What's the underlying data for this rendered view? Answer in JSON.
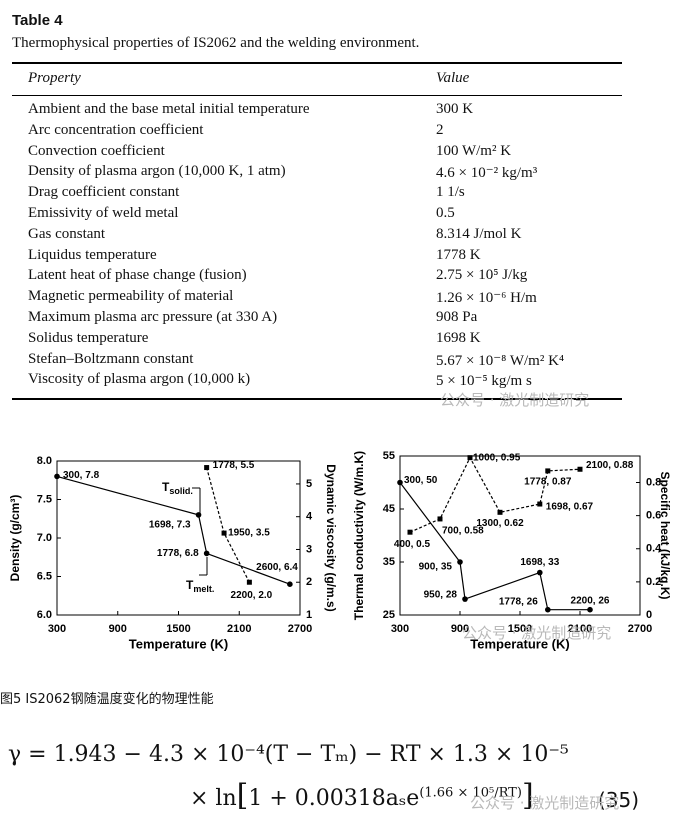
{
  "table": {
    "title": "Table 4",
    "caption": "Thermophysical properties of IS2062 and the welding environment.",
    "header": [
      "Property",
      "Value"
    ],
    "rows": [
      [
        "Ambient and the base metal initial temperature",
        "300 K"
      ],
      [
        "Arc concentration coefficient",
        "2"
      ],
      [
        "Convection coefficient",
        "100 W/m² K"
      ],
      [
        "Density of plasma argon (10,000 K, 1 atm)",
        "4.6 × 10⁻² kg/m³"
      ],
      [
        "Drag coefficient constant",
        "1 1/s"
      ],
      [
        "Emissivity of weld metal",
        "0.5"
      ],
      [
        "Gas constant",
        "8.314 J/mol K"
      ],
      [
        "Liquidus temperature",
        "1778 K"
      ],
      [
        "Latent heat of phase change (fusion)",
        "2.75 × 10⁵ J/kg"
      ],
      [
        "Magnetic permeability of material",
        "1.26 × 10⁻⁶ H/m"
      ],
      [
        "Maximum plasma arc pressure (at 330 A)",
        "908 Pa"
      ],
      [
        "Solidus temperature",
        "1698 K"
      ],
      [
        "Stefan–Boltzmann constant",
        "5.67 × 10⁻⁸ W/m² K⁴"
      ],
      [
        "Viscosity of plasma argon (10,000 k)",
        "5 × 10⁻⁵ kg/m s"
      ]
    ]
  },
  "watermark": "公众号 · 激光制造研究",
  "chart_data": [
    {
      "type": "line",
      "x_label": "Temperature (K)",
      "y_label": "Density (g/cm³)",
      "y2_label": "Dynamic viscosity (g/m.s)",
      "xlim": [
        300,
        2700
      ],
      "xticks": [
        300,
        900,
        1500,
        2100,
        2700
      ],
      "ylim": [
        6,
        8
      ],
      "yticks": [
        {
          "value": 6,
          "label": "6.0"
        },
        6.5,
        {
          "value": 7,
          "label": "7.0"
        },
        7.5,
        {
          "value": 8,
          "label": "8.0"
        }
      ],
      "y2lim": [
        1,
        5.7
      ],
      "y2ticks": [
        1,
        2,
        3,
        4,
        5
      ],
      "series": [
        {
          "color": "#000000",
          "line_style": "solid",
          "marker": "circle",
          "x": [
            300,
            1698,
            1778,
            2600
          ],
          "values": [
            7.8,
            7.3,
            6.8,
            6.4
          ],
          "value_labels": [
            "300, 7.8",
            "1698, 7.3",
            "1778, 6.8",
            "2600, 6.4"
          ]
        },
        {
          "color": "#000000",
          "line_style": "dashed",
          "marker": "square",
          "axis": "y2",
          "x": [
            1778,
            1950,
            2200
          ],
          "values": [
            5.5,
            3.5,
            2.0
          ],
          "value_labels": [
            "1778, 5.5",
            "1950, 3.5",
            "2200, 2.0"
          ]
        }
      ],
      "annotations": [
        {
          "text": "T",
          "subscript": "solid."
        },
        {
          "text": "T",
          "subscript": "melt."
        }
      ]
    },
    {
      "type": "line",
      "x_label": "Temperature (K)",
      "y_label": "Thermal conductivity (W/m.K)",
      "y2_label": "Specific heat (kJ/kg.K)",
      "xlim": [
        300,
        2700
      ],
      "xticks": [
        300,
        900,
        1500,
        2100,
        2700
      ],
      "ylim": [
        25,
        55
      ],
      "yticks": [
        25,
        35,
        45,
        55
      ],
      "y2lim": [
        0,
        0.96
      ],
      "y2ticks": [
        0,
        0.2,
        0.4,
        0.6,
        0.8
      ],
      "series": [
        {
          "color": "#000000",
          "line_style": "solid",
          "marker": "circle",
          "x": [
            300,
            900,
            950,
            1698,
            1778,
            2200
          ],
          "values": [
            50,
            35,
            28,
            33,
            26,
            26
          ],
          "value_labels": [
            "300, 50",
            "900, 35",
            "950, 28",
            "1698, 33",
            "1778, 26",
            "2200, 26"
          ]
        },
        {
          "color": "#000000",
          "line_style": "dashed",
          "marker": "square",
          "axis": "y2",
          "x": [
            400,
            700,
            1000,
            1300,
            1698,
            1778,
            2100
          ],
          "values": [
            0.5,
            0.58,
            0.95,
            0.62,
            0.67,
            0.87,
            0.88
          ],
          "value_labels": [
            "400, 0.5",
            "700, 0.58",
            "1000, 0.95",
            "1300, 0.62",
            "1698, 0.67",
            "1778, 0.87",
            "2100, 0.88"
          ]
        }
      ]
    }
  ],
  "figure_caption": "图5 IS2062钢随温度变化的物理性能",
  "equation": {
    "line1": "γ = 1.943 − 4.3 × 10⁻⁴(T − Tₘ) − RT × 1.3 × 10⁻⁵",
    "line2_prefix": "× ln",
    "line2_body": "1 + 0.00318aₛe",
    "line2_exponent": "(1.66 × 10⁵/RT)",
    "number": "(35)"
  }
}
